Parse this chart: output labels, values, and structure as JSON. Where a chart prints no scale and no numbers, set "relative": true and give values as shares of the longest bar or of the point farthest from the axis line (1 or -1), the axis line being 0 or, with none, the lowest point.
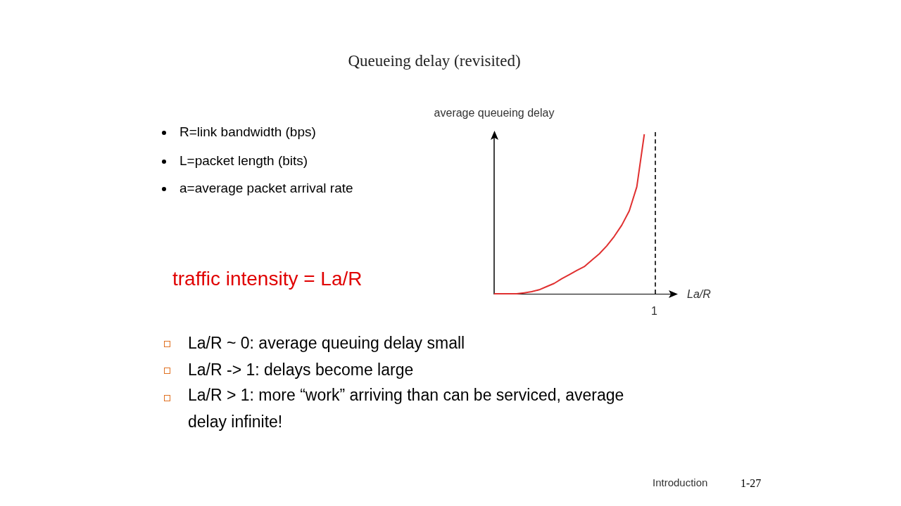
{
  "chart_data": {
    "type": "line",
    "title": "Queueing delay (revisited)",
    "xlabel": "La/R",
    "ylabel": "average queueing delay",
    "relative": true,
    "categories": [
      null,
      null,
      null,
      null,
      null,
      null,
      null,
      null,
      null,
      null,
      null,
      null,
      null,
      null,
      null,
      null,
      null,
      null,
      null,
      null,
      null,
      null,
      null,
      null,
      null
    ],
    "series": [
      {
        "color": "#e03030",
        "values": [
          0,
          0,
          0,
          0,
          0.006,
          0.013,
          0.025,
          0.045,
          0.065,
          0.094,
          0.12,
          0.146,
          0.17,
          0.21,
          0.25,
          0.3,
          0.36,
          0.43,
          0.52,
          0.67,
          1,
          null,
          null,
          null,
          null
        ]
      }
    ],
    "marker": "none",
    "line_style": "solid",
    "annotations": [
      "R=link bandwidth (bps)",
      "L=packet length (bits)",
      "a=average packet arrival rate",
      "traffic intensity = La/R",
      "La/R ~ 0: average queuing delay small",
      "La/R -> 1: delays become large",
      "La/R > 1: more “work” arriving than can be serviced, average delay infinite!",
      "Introduction",
      "1-27",
      "1"
    ]
  }
}
